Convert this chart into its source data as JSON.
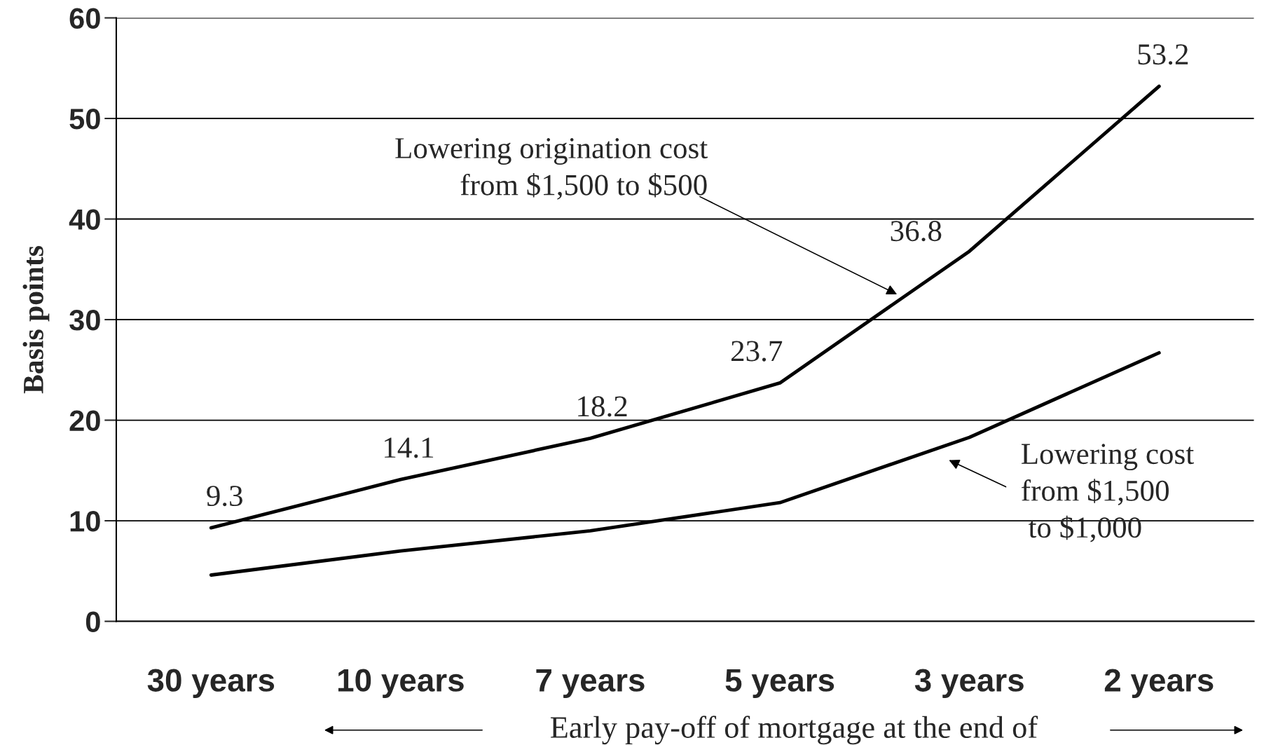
{
  "chart_data": {
    "type": "line",
    "xlabel": "Early pay-off of mortgage at the end of",
    "ylabel": "Basis points",
    "categories": [
      "30 years",
      "10 years",
      "7 years",
      "5 years",
      "3 years",
      "2 years"
    ],
    "series": [
      {
        "color": "#000000",
        "values": [
          9.3,
          14.1,
          18.2,
          23.7,
          36.8,
          53.2
        ],
        "value_labels": [
          "9.3",
          "14.1",
          "18.2",
          "23.7",
          "36.8",
          "53.2"
        ]
      },
      {
        "color": "#000000",
        "values": [
          4.6,
          7.0,
          9.0,
          11.8,
          18.3,
          26.7
        ]
      }
    ],
    "annotations": [
      "Lowering origination cost\nfrom $1,500 to $500",
      "Lowering cost\nfrom $1,500\n to $1,000"
    ],
    "ylim": [
      0,
      60
    ],
    "yticks": [
      0,
      10,
      20,
      30,
      40,
      50,
      60
    ],
    "grid": "y",
    "marker": "none",
    "line_style": "solid",
    "legend": false
  }
}
